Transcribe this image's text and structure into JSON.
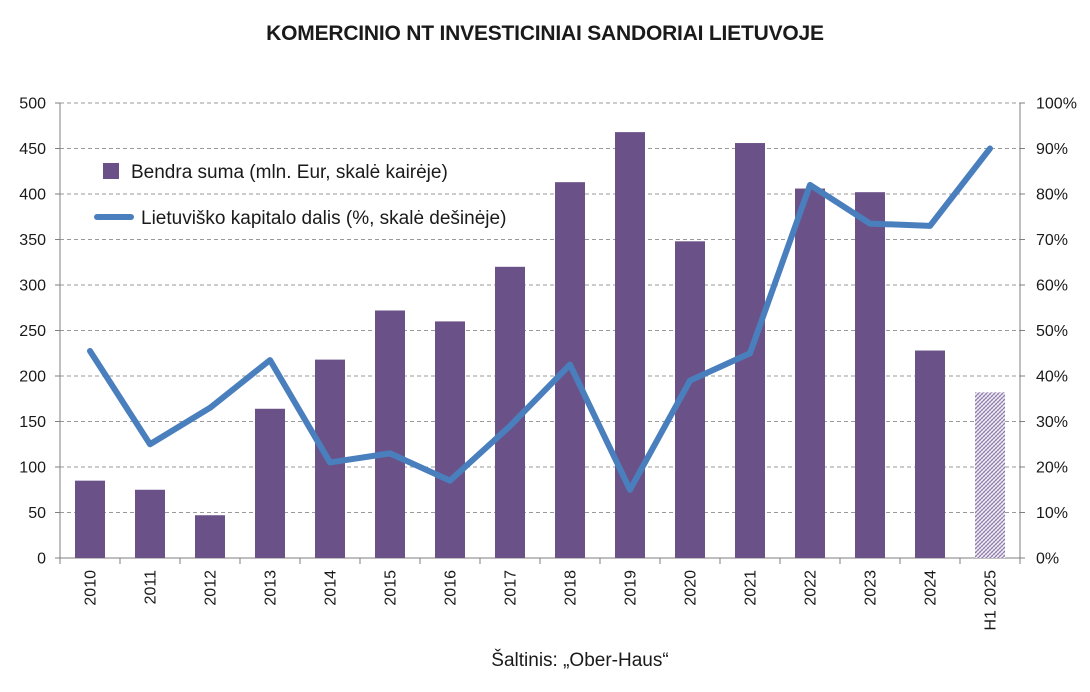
{
  "title": "KOMERCINIO NT INVESTICINIAI SANDORIAI LIETUVOJE",
  "source": "Šaltinis: „Ober-Haus“",
  "colors": {
    "bar": "#6a5289",
    "bar_partial_hatch": "#b9a8cc",
    "line": "#4a7fbe",
    "grid": "#9a9a9a",
    "axis": "#7f7f7f"
  },
  "chart_data": {
    "type": "bar",
    "categories": [
      "2010",
      "2011",
      "2012",
      "2013",
      "2014",
      "2015",
      "2016",
      "2017",
      "2018",
      "2019",
      "2020",
      "2021",
      "2022",
      "2023",
      "2024",
      "H1 2025"
    ],
    "series": [
      {
        "name": "Bendra suma (mln. Eur, skalė kairėje)",
        "type": "bar",
        "axis": "left",
        "values": [
          85,
          75,
          47,
          164,
          218,
          272,
          260,
          320,
          413,
          468,
          348,
          456,
          406,
          402,
          228,
          182
        ],
        "partial_last": true
      },
      {
        "name": "Lietuviško kapitalo dalis (%, skalė dešinėje)",
        "type": "line",
        "axis": "right",
        "values": [
          45.5,
          25,
          33,
          43.5,
          21,
          23,
          17,
          29,
          42.5,
          15,
          39,
          45,
          82,
          73.5,
          73,
          90
        ]
      }
    ],
    "y_left": {
      "min": 0,
      "max": 500,
      "step": 50,
      "ticks": [
        "0",
        "50",
        "100",
        "150",
        "200",
        "250",
        "300",
        "350",
        "400",
        "450",
        "500"
      ]
    },
    "y_right": {
      "min": 0,
      "max": 100,
      "step": 10,
      "ticks": [
        "0%",
        "10%",
        "20%",
        "30%",
        "40%",
        "50%",
        "60%",
        "70%",
        "80%",
        "90%",
        "100%"
      ]
    },
    "grid": true,
    "legend_position": "top-left"
  }
}
